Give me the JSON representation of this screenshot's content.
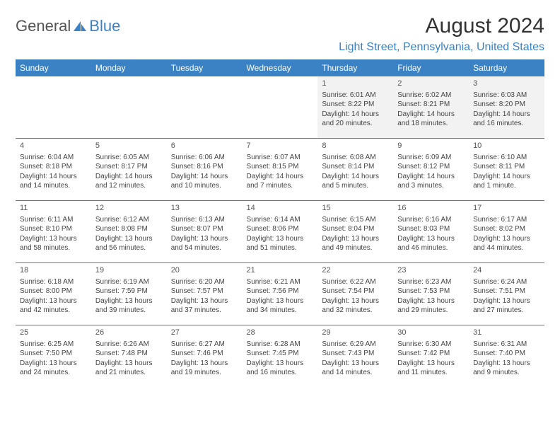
{
  "brand": {
    "text_a": "General",
    "text_b": "Blue",
    "brand_color": "#3b82c4"
  },
  "title": "August 2024",
  "location": "Light Street, Pennsylvania, United States",
  "header_bg": "#3b82c4",
  "days_of_week": [
    "Sunday",
    "Monday",
    "Tuesday",
    "Wednesday",
    "Thursday",
    "Friday",
    "Saturday"
  ],
  "weeks": [
    [
      null,
      null,
      null,
      null,
      {
        "n": "1",
        "sr": "Sunrise: 6:01 AM",
        "ss": "Sunset: 8:22 PM",
        "d1": "Daylight: 14 hours",
        "d2": "and 20 minutes."
      },
      {
        "n": "2",
        "sr": "Sunrise: 6:02 AM",
        "ss": "Sunset: 8:21 PM",
        "d1": "Daylight: 14 hours",
        "d2": "and 18 minutes."
      },
      {
        "n": "3",
        "sr": "Sunrise: 6:03 AM",
        "ss": "Sunset: 8:20 PM",
        "d1": "Daylight: 14 hours",
        "d2": "and 16 minutes."
      }
    ],
    [
      {
        "n": "4",
        "sr": "Sunrise: 6:04 AM",
        "ss": "Sunset: 8:18 PM",
        "d1": "Daylight: 14 hours",
        "d2": "and 14 minutes."
      },
      {
        "n": "5",
        "sr": "Sunrise: 6:05 AM",
        "ss": "Sunset: 8:17 PM",
        "d1": "Daylight: 14 hours",
        "d2": "and 12 minutes."
      },
      {
        "n": "6",
        "sr": "Sunrise: 6:06 AM",
        "ss": "Sunset: 8:16 PM",
        "d1": "Daylight: 14 hours",
        "d2": "and 10 minutes."
      },
      {
        "n": "7",
        "sr": "Sunrise: 6:07 AM",
        "ss": "Sunset: 8:15 PM",
        "d1": "Daylight: 14 hours",
        "d2": "and 7 minutes."
      },
      {
        "n": "8",
        "sr": "Sunrise: 6:08 AM",
        "ss": "Sunset: 8:14 PM",
        "d1": "Daylight: 14 hours",
        "d2": "and 5 minutes."
      },
      {
        "n": "9",
        "sr": "Sunrise: 6:09 AM",
        "ss": "Sunset: 8:12 PM",
        "d1": "Daylight: 14 hours",
        "d2": "and 3 minutes."
      },
      {
        "n": "10",
        "sr": "Sunrise: 6:10 AM",
        "ss": "Sunset: 8:11 PM",
        "d1": "Daylight: 14 hours",
        "d2": "and 1 minute."
      }
    ],
    [
      {
        "n": "11",
        "sr": "Sunrise: 6:11 AM",
        "ss": "Sunset: 8:10 PM",
        "d1": "Daylight: 13 hours",
        "d2": "and 58 minutes."
      },
      {
        "n": "12",
        "sr": "Sunrise: 6:12 AM",
        "ss": "Sunset: 8:08 PM",
        "d1": "Daylight: 13 hours",
        "d2": "and 56 minutes."
      },
      {
        "n": "13",
        "sr": "Sunrise: 6:13 AM",
        "ss": "Sunset: 8:07 PM",
        "d1": "Daylight: 13 hours",
        "d2": "and 54 minutes."
      },
      {
        "n": "14",
        "sr": "Sunrise: 6:14 AM",
        "ss": "Sunset: 8:06 PM",
        "d1": "Daylight: 13 hours",
        "d2": "and 51 minutes."
      },
      {
        "n": "15",
        "sr": "Sunrise: 6:15 AM",
        "ss": "Sunset: 8:04 PM",
        "d1": "Daylight: 13 hours",
        "d2": "and 49 minutes."
      },
      {
        "n": "16",
        "sr": "Sunrise: 6:16 AM",
        "ss": "Sunset: 8:03 PM",
        "d1": "Daylight: 13 hours",
        "d2": "and 46 minutes."
      },
      {
        "n": "17",
        "sr": "Sunrise: 6:17 AM",
        "ss": "Sunset: 8:02 PM",
        "d1": "Daylight: 13 hours",
        "d2": "and 44 minutes."
      }
    ],
    [
      {
        "n": "18",
        "sr": "Sunrise: 6:18 AM",
        "ss": "Sunset: 8:00 PM",
        "d1": "Daylight: 13 hours",
        "d2": "and 42 minutes."
      },
      {
        "n": "19",
        "sr": "Sunrise: 6:19 AM",
        "ss": "Sunset: 7:59 PM",
        "d1": "Daylight: 13 hours",
        "d2": "and 39 minutes."
      },
      {
        "n": "20",
        "sr": "Sunrise: 6:20 AM",
        "ss": "Sunset: 7:57 PM",
        "d1": "Daylight: 13 hours",
        "d2": "and 37 minutes."
      },
      {
        "n": "21",
        "sr": "Sunrise: 6:21 AM",
        "ss": "Sunset: 7:56 PM",
        "d1": "Daylight: 13 hours",
        "d2": "and 34 minutes."
      },
      {
        "n": "22",
        "sr": "Sunrise: 6:22 AM",
        "ss": "Sunset: 7:54 PM",
        "d1": "Daylight: 13 hours",
        "d2": "and 32 minutes."
      },
      {
        "n": "23",
        "sr": "Sunrise: 6:23 AM",
        "ss": "Sunset: 7:53 PM",
        "d1": "Daylight: 13 hours",
        "d2": "and 29 minutes."
      },
      {
        "n": "24",
        "sr": "Sunrise: 6:24 AM",
        "ss": "Sunset: 7:51 PM",
        "d1": "Daylight: 13 hours",
        "d2": "and 27 minutes."
      }
    ],
    [
      {
        "n": "25",
        "sr": "Sunrise: 6:25 AM",
        "ss": "Sunset: 7:50 PM",
        "d1": "Daylight: 13 hours",
        "d2": "and 24 minutes."
      },
      {
        "n": "26",
        "sr": "Sunrise: 6:26 AM",
        "ss": "Sunset: 7:48 PM",
        "d1": "Daylight: 13 hours",
        "d2": "and 21 minutes."
      },
      {
        "n": "27",
        "sr": "Sunrise: 6:27 AM",
        "ss": "Sunset: 7:46 PM",
        "d1": "Daylight: 13 hours",
        "d2": "and 19 minutes."
      },
      {
        "n": "28",
        "sr": "Sunrise: 6:28 AM",
        "ss": "Sunset: 7:45 PM",
        "d1": "Daylight: 13 hours",
        "d2": "and 16 minutes."
      },
      {
        "n": "29",
        "sr": "Sunrise: 6:29 AM",
        "ss": "Sunset: 7:43 PM",
        "d1": "Daylight: 13 hours",
        "d2": "and 14 minutes."
      },
      {
        "n": "30",
        "sr": "Sunrise: 6:30 AM",
        "ss": "Sunset: 7:42 PM",
        "d1": "Daylight: 13 hours",
        "d2": "and 11 minutes."
      },
      {
        "n": "31",
        "sr": "Sunrise: 6:31 AM",
        "ss": "Sunset: 7:40 PM",
        "d1": "Daylight: 13 hours",
        "d2": "and 9 minutes."
      }
    ]
  ]
}
